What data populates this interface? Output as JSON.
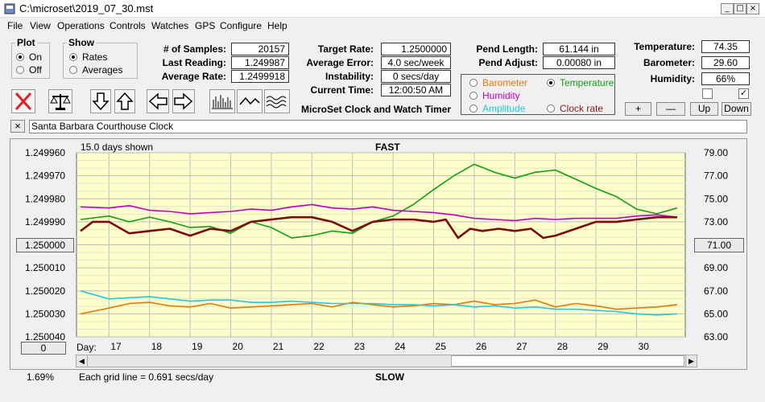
{
  "window": {
    "title": "C:\\microset\\2019_07_30.mst"
  },
  "menu": [
    "File",
    "View",
    "Operations",
    "Controls",
    "Watches",
    "GPS",
    "Configure",
    "Help"
  ],
  "plot_group": {
    "label": "Plot",
    "options": [
      "On",
      "Off"
    ],
    "selected": "On"
  },
  "show_group": {
    "label": "Show",
    "options": [
      "Rates",
      "Averages"
    ],
    "selected": "Rates"
  },
  "stats": {
    "samples_label": "# of Samples:",
    "samples": "20157",
    "last_reading_label": "Last Reading:",
    "last_reading": "1.249987",
    "average_rate_label": "Average Rate:",
    "average_rate": "1.2499918",
    "target_rate_label": "Target Rate:",
    "target_rate": "1.2500000",
    "average_error_label": "Average Error:",
    "average_error": "4.0 sec/week",
    "instability_label": "Instability:",
    "instability": "0 secs/day",
    "current_time_label": "Current Time:",
    "current_time": "12:00:50 AM",
    "pend_length_label": "Pend Length:",
    "pend_length": "61.144 in",
    "pend_adjust_label": "Pend Adjust:",
    "pend_adjust": "0.00080 in",
    "temperature_label": "Temperature:",
    "temperature": "74.35",
    "barometer_label": "Barometer:",
    "barometer": "29.60",
    "humidity_label": "Humidity:",
    "humidity": "66%"
  },
  "app_title": "MicroSet Clock and Watch Timer",
  "sensor_options": {
    "items": [
      {
        "label": "Barometer",
        "color": "#e8780a",
        "selected": false
      },
      {
        "label": "Temperature",
        "color": "#10a010",
        "selected": true
      },
      {
        "label": "Humidity",
        "color": "#c000c0",
        "selected": false
      },
      {
        "label": "Clock rate",
        "color": "#8b1a1a",
        "selected": false
      },
      {
        "label": "Amplitude",
        "color": "#20c8e0",
        "selected": false
      }
    ]
  },
  "sensor_buttons": [
    "+",
    "—",
    "Up",
    "Down"
  ],
  "checkboxes": [
    false,
    true
  ],
  "clock_name": "Santa Barbara Courthouse Clock",
  "close_x": "×",
  "graph": {
    "days_shown": "15.0 days shown",
    "fast_label": "FAST",
    "slow_label": "SLOW",
    "day_label": "Day:",
    "grid_note": "Each grid line = 0.691 secs/day",
    "percent": "1.69%",
    "left_button": "1.250000",
    "right_button": "71.00",
    "zero_button": "0"
  },
  "chart_data": {
    "type": "line",
    "x_ticks": [
      "17",
      "18",
      "19",
      "20",
      "21",
      "22",
      "23",
      "24",
      "25",
      "26",
      "27",
      "28",
      "29",
      "30"
    ],
    "y_left_ticks": [
      "1.249960",
      "1.249970",
      "1.249980",
      "1.249990",
      "1.250000",
      "1.250010",
      "1.250020",
      "1.250030",
      "1.250040"
    ],
    "y_right_ticks": [
      "79.00",
      "77.00",
      "75.00",
      "73.00",
      "71.00",
      "69.00",
      "67.00",
      "65.00",
      "63.00"
    ],
    "ylim_left": [
      1.24996,
      1.25004
    ],
    "ylim_right": [
      63,
      79
    ],
    "grid": true,
    "series": [
      {
        "name": "Temperature",
        "color": "#10a010",
        "axis": "right",
        "x": [
          16.3,
          17,
          17.5,
          18,
          18.5,
          19,
          19.5,
          20,
          20.5,
          21,
          21.5,
          22,
          22.5,
          23,
          23.5,
          24,
          24.5,
          25,
          25.5,
          26,
          26.5,
          27,
          27.5,
          28,
          28.5,
          29,
          29.5,
          30,
          30.5,
          31
        ],
        "y": [
          73.2,
          73.5,
          73.0,
          73.4,
          73.0,
          72.5,
          72.6,
          72.0,
          73.0,
          72.5,
          71.6,
          71.8,
          72.2,
          72.0,
          73.0,
          73.5,
          74.5,
          75.8,
          77.0,
          78.0,
          77.3,
          76.8,
          77.3,
          77.5,
          76.7,
          75.9,
          75.2,
          74.1,
          73.7,
          74.2
        ]
      },
      {
        "name": "Humidity",
        "color": "#c000c0",
        "axis": "right",
        "x": [
          16.3,
          17,
          17.5,
          18,
          18.5,
          19,
          19.5,
          20,
          20.5,
          21,
          21.5,
          22,
          22.5,
          23,
          23.5,
          24,
          24.5,
          25,
          25.5,
          26,
          26.5,
          27,
          27.5,
          28,
          28.5,
          29,
          29.5,
          30,
          30.5,
          31
        ],
        "y": [
          74.3,
          74.2,
          74.4,
          74.0,
          73.9,
          73.7,
          73.8,
          73.9,
          74.1,
          74.0,
          74.3,
          74.5,
          74.2,
          74.1,
          74.3,
          74.0,
          73.9,
          73.8,
          73.6,
          73.3,
          73.2,
          73.1,
          73.3,
          73.2,
          73.3,
          73.3,
          73.3,
          73.5,
          73.6,
          73.4
        ]
      },
      {
        "name": "Clock rate",
        "color": "#7a0c0c",
        "axis": "left",
        "x": [
          16.3,
          16.6,
          17,
          17.5,
          18,
          18.5,
          19,
          19.5,
          20,
          20.5,
          21,
          21.5,
          22,
          22.5,
          23,
          23.5,
          24,
          24.5,
          25,
          25.3,
          25.6,
          25.9,
          26.2,
          26.6,
          27,
          27.4,
          27.7,
          28,
          28.5,
          29,
          29.5,
          30,
          30.5,
          31
        ],
        "y": [
          1.249994,
          1.24999,
          1.24999,
          1.249995,
          1.249994,
          1.249993,
          1.249996,
          1.249993,
          1.249994,
          1.24999,
          1.249989,
          1.249988,
          1.249988,
          1.24999,
          1.249994,
          1.24999,
          1.249989,
          1.249989,
          1.24999,
          1.249989,
          1.249997,
          1.249993,
          1.249994,
          1.249993,
          1.249994,
          1.249993,
          1.249997,
          1.249996,
          1.249993,
          1.24999,
          1.24999,
          1.249989,
          1.249988,
          1.249988
        ]
      },
      {
        "name": "Barometer",
        "color": "#e8780a",
        "axis": "right",
        "x": [
          16.3,
          17,
          17.5,
          18,
          18.5,
          19,
          19.5,
          20,
          20.5,
          21,
          21.5,
          22,
          22.5,
          23,
          23.5,
          24,
          24.5,
          25,
          25.5,
          26,
          26.5,
          27,
          27.5,
          28,
          28.5,
          29,
          29.5,
          30,
          30.5,
          31
        ],
        "y": [
          65.0,
          65.5,
          65.9,
          66.0,
          65.7,
          65.6,
          65.9,
          65.5,
          65.6,
          65.7,
          65.8,
          65.9,
          65.6,
          66.0,
          65.8,
          65.6,
          65.7,
          65.9,
          65.8,
          66.1,
          65.8,
          65.9,
          66.2,
          65.6,
          65.9,
          65.7,
          65.4,
          65.5,
          65.6,
          65.8
        ]
      },
      {
        "name": "Amplitude",
        "color": "#20c8e0",
        "axis": "right",
        "x": [
          16.3,
          17,
          17.5,
          18,
          18.5,
          19,
          19.5,
          20,
          20.5,
          21,
          21.5,
          22,
          22.5,
          23,
          23.5,
          24,
          24.5,
          25,
          25.5,
          26,
          26.5,
          27,
          27.5,
          28,
          28.5,
          29,
          29.5,
          30,
          30.5,
          31
        ],
        "y": [
          67.0,
          66.3,
          66.4,
          66.5,
          66.3,
          66.1,
          66.2,
          66.2,
          66.0,
          66.0,
          66.1,
          66.0,
          65.9,
          65.9,
          65.9,
          65.8,
          65.8,
          65.7,
          65.8,
          65.6,
          65.7,
          65.5,
          65.6,
          65.4,
          65.4,
          65.3,
          65.2,
          65.0,
          64.9,
          65.0
        ]
      }
    ]
  }
}
